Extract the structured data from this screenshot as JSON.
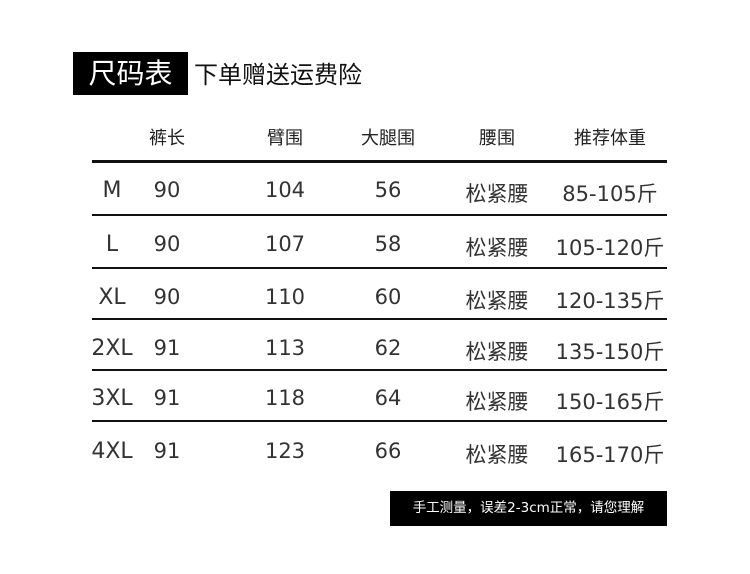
{
  "title": "尺码表",
  "subtitle": "下单赠送运费险",
  "headers": [
    "",
    "裤长",
    "臂围",
    "大腿围",
    "腰围",
    "推荐体重"
  ],
  "rows": [
    [
      "M",
      "90",
      "104",
      "56",
      "松紧腰",
      "85-105斤"
    ],
    [
      "L",
      "90",
      "107",
      "58",
      "松紧腰",
      "105-120斤"
    ],
    [
      "XL",
      "90",
      "110",
      "60",
      "松紧腰",
      "120-135斤"
    ],
    [
      "2XL",
      "91",
      "113",
      "62",
      "松紧腰",
      "135-150斤"
    ],
    [
      "3XL",
      "91",
      "118",
      "64",
      "松紧腰",
      "150-165斤"
    ],
    [
      "4XL",
      "91",
      "123",
      "66",
      "松紧腰",
      "165-170斤"
    ]
  ],
  "note": "手工测量，误差2-3cm正常，请您理解"
}
